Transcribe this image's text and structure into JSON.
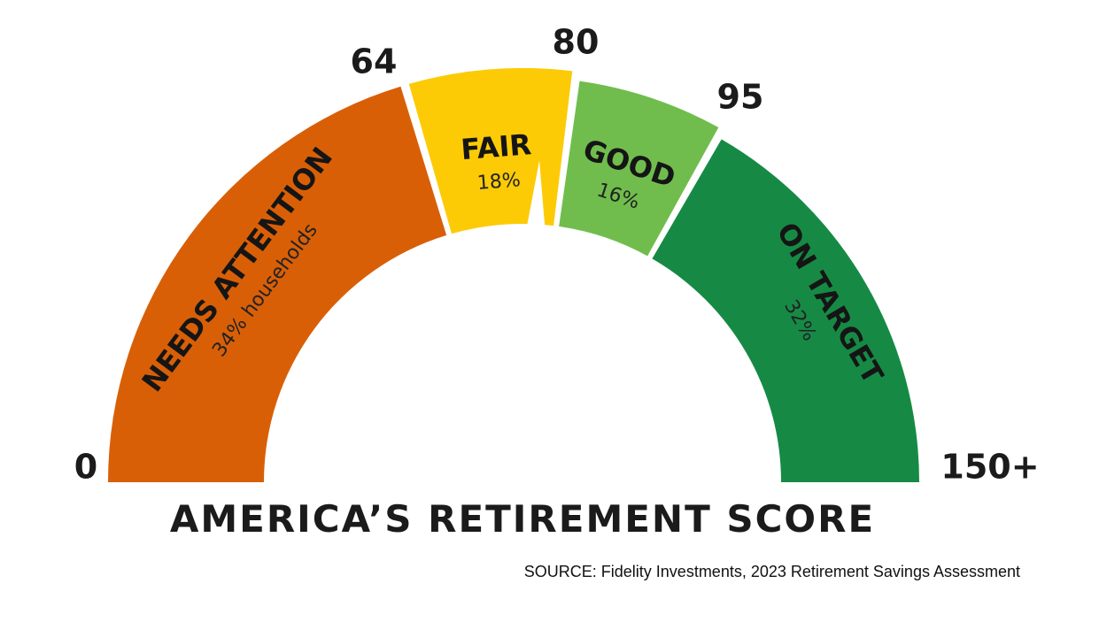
{
  "chart_data": {
    "type": "gauge",
    "title": "AMERICA’S RETIREMENT SCORE",
    "source": "SOURCE: Fidelity Investments, 2023 Retirement Savings Assessment",
    "scale": {
      "min": 0,
      "max": 150
    },
    "tick_labels": [
      "0",
      "64",
      "80",
      "95",
      "150+"
    ],
    "segments": [
      {
        "label": "NEEDS ATTENTION",
        "share": "34% households",
        "from": 0,
        "to": 64,
        "color": "#d95f07"
      },
      {
        "label": "FAIR",
        "share": "18%",
        "from": 64,
        "to": 80,
        "color": "#fccb06"
      },
      {
        "label": "GOOD",
        "share": "16%",
        "from": 80,
        "to": 95,
        "color": "#70bd4d"
      },
      {
        "label": "ON TARGET",
        "share": "32%",
        "from": 95,
        "to": 150,
        "color": "#168a45"
      }
    ],
    "needle_value": 77
  }
}
